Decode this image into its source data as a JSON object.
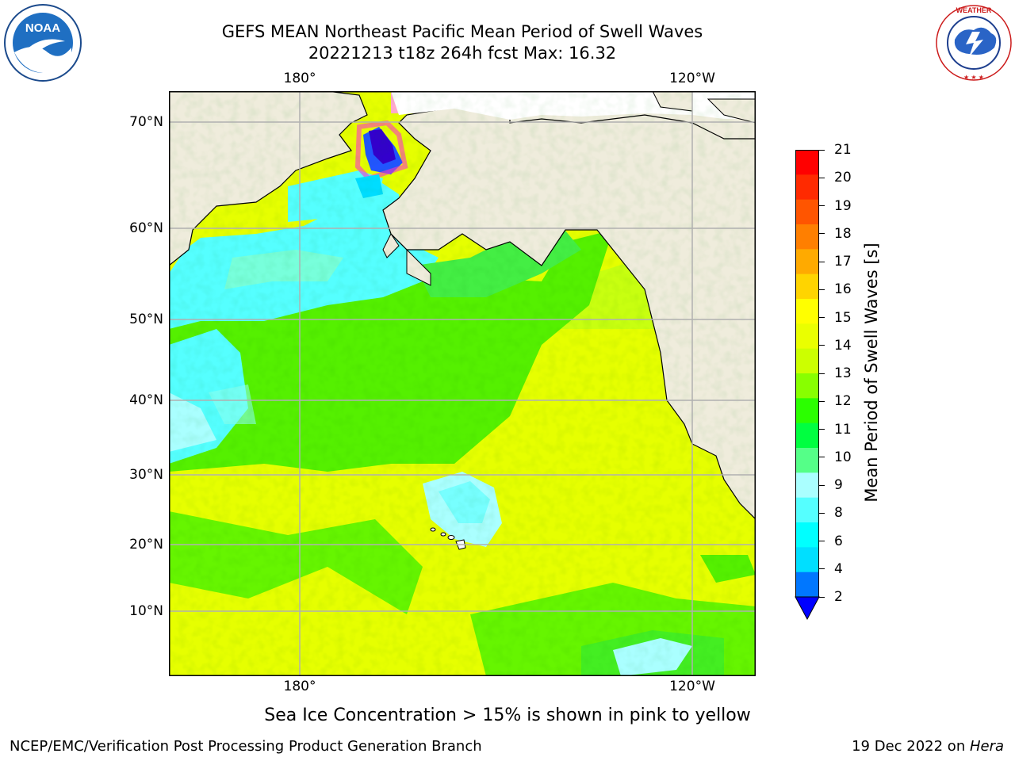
{
  "title_line1": "GEFS MEAN Northeast Pacific Mean Period of Swell Waves",
  "title_line2": "20221213 t18z 264h fcst   Max: 16.32",
  "lon_labels": [
    "180°",
    "120°W"
  ],
  "lat_labels": [
    "70°N",
    "60°N",
    "50°N",
    "40°N",
    "30°N",
    "20°N",
    "10°N"
  ],
  "caption": "Sea Ice Concentration > 15% is shown in pink to yellow",
  "footer_left": "NCEP/EMC/Verification Post Processing Product Generation Branch",
  "footer_date": "19 Dec 2022 on ",
  "footer_host": "Hera",
  "colorbar": {
    "label": "Mean Period of Swell Waves [s]",
    "ticks": [
      "21",
      "20",
      "19",
      "18",
      "17",
      "16",
      "15",
      "14",
      "13",
      "12",
      "11",
      "10",
      "9",
      "8",
      "6",
      "4",
      "2"
    ],
    "colors": [
      "#ff0000",
      "#ff2a00",
      "#ff5500",
      "#ff7f00",
      "#ffaa00",
      "#ffd400",
      "#ffff00",
      "#eaff00",
      "#ccff00",
      "#88ff00",
      "#2bff00",
      "#00ff40",
      "#55ff88",
      "#aaffff",
      "#55ffff",
      "#00ffff",
      "#00dfff",
      "#0077ff",
      "#0000ff"
    ]
  },
  "logos": {
    "left": "NOAA",
    "right": "NATIONAL WEATHER SERVICE"
  }
}
